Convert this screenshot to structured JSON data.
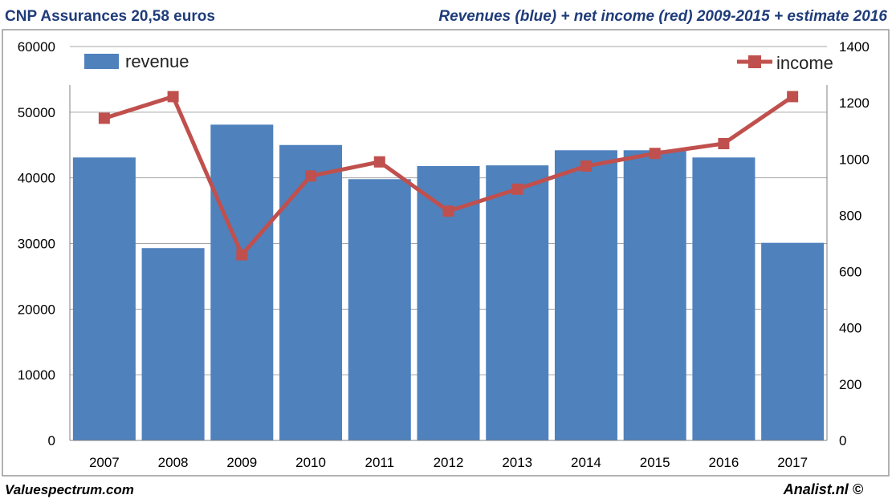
{
  "header": {
    "title_left": "CNP Assurances 20,58 euros",
    "title_right": "Revenues (blue) + net income (red) 2009-2015 + estimate 2016"
  },
  "footer": {
    "source_left": "Valuespectrum.com",
    "source_right": "Analist.nl ©"
  },
  "colors": {
    "bar": "#4f81bd",
    "line": "#c0504d",
    "header_text": "#1f3c7a",
    "grid": "#a6a6a6",
    "frame": "#999999"
  },
  "chart_data": {
    "type": "bar",
    "title": "Revenues (blue) + net income (red) 2009-2015 + estimate 2016",
    "categories": [
      "2007",
      "2008",
      "2009",
      "2010",
      "2011",
      "2012",
      "2013",
      "2014",
      "2015",
      "2016",
      "2017"
    ],
    "series": [
      {
        "name": "revenue",
        "type": "bar",
        "axis": "left",
        "values": [
          43100,
          29300,
          48100,
          45000,
          39800,
          41800,
          41900,
          44200,
          44200,
          43100,
          30100
        ]
      },
      {
        "name": "income",
        "type": "line",
        "axis": "right",
        "values": [
          1145,
          1222,
          660,
          940,
          990,
          815,
          893,
          975,
          1020,
          1055,
          1222
        ]
      }
    ],
    "y_left": {
      "min": 0,
      "max": 60000,
      "ticks": [
        "0",
        "10000",
        "20000",
        "30000",
        "40000",
        "50000",
        "60000"
      ]
    },
    "y_right": {
      "min": 0,
      "max": 1400,
      "ticks": [
        "0",
        "200",
        "400",
        "600",
        "800",
        "1000",
        "1200",
        "1400"
      ]
    },
    "legend": {
      "revenue_label": "revenue",
      "income_label": "income"
    },
    "grid": true
  }
}
